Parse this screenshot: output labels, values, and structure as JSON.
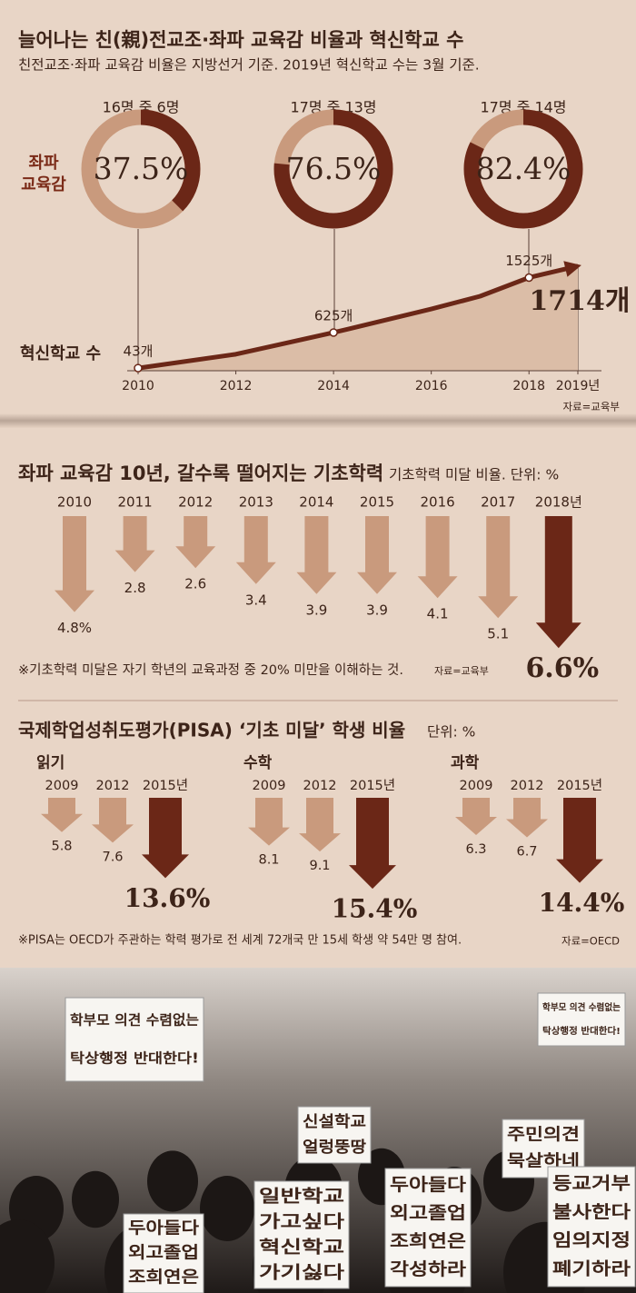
{
  "chart_data": [
    {
      "type": "donut",
      "title": "늘어나는 친(親)전교조·좌파 교육감 비율과 혁신학교 수",
      "subtitle": "친전교조·좌파 교육감 비율은 지방선거 기준. 2019년 혁신학교 수는 3월 기준.",
      "label": "좌파 교육감",
      "categories": [
        "16명 중 6명",
        "17명 중 13명",
        "17명 중 14명"
      ],
      "values": [
        37.5,
        76.5,
        82.4
      ],
      "value_labels": [
        "37.5%",
        "76.5%",
        "82.4%"
      ],
      "color": "#6b2717",
      "track_color": "#c99a7d"
    },
    {
      "type": "area",
      "label": "혁신학교 수",
      "x": [
        2010,
        2012,
        2014,
        2016,
        2017,
        2018,
        2019
      ],
      "values": [
        43,
        270,
        625,
        1010,
        1220,
        1525,
        1714
      ],
      "value_labels": [
        "43개",
        null,
        "625개",
        null,
        null,
        "1525개",
        "1714개"
      ],
      "xlim": [
        2010,
        2019
      ],
      "ylim": [
        0,
        1800
      ],
      "xticks": [
        2010,
        2012,
        2014,
        2016,
        2018,
        {
          "value": 2019,
          "label": "2019년"
        }
      ],
      "color": "#6b2717",
      "fill": "#dbbda7",
      "source": "자료=교육부"
    },
    {
      "type": "arrow_bar",
      "title": "좌파 교육감 10년, 갈수록 떨어지는 기초학력",
      "subtitle": "기초학력 미달 비율. 단위: %",
      "categories": [
        "2010",
        "2011",
        "2012",
        "2013",
        "2014",
        "2015",
        "2016",
        "2017",
        "2018년"
      ],
      "values": [
        4.8,
        2.8,
        2.6,
        3.4,
        3.9,
        3.9,
        4.1,
        5.1,
        6.6
      ],
      "value_labels": [
        "4.8%",
        "2.8",
        "2.6",
        "3.4",
        "3.9",
        "3.9",
        "4.1",
        "5.1",
        "6.6%"
      ],
      "colors": [
        "#c99a7d",
        "#c99a7d",
        "#c99a7d",
        "#c99a7d",
        "#c99a7d",
        "#c99a7d",
        "#c99a7d",
        "#c99a7d",
        "#6b2717"
      ],
      "ylim": [
        0,
        7
      ],
      "note": "※기초학력 미달은 자기 학년의 교육과정 중 20% 미만을 이해하는 것.",
      "source": "자료=교육부"
    },
    {
      "type": "arrow_bar_panels",
      "title": "국제학업성취도평가(PISA) ‘기초 미달’ 학생 비율",
      "subtitle": "단위: %",
      "ylim": [
        0,
        16
      ],
      "colors": [
        "#c99a7d",
        "#c99a7d",
        "#6b2717"
      ],
      "panels": [
        {
          "title": "읽기",
          "categories": [
            "2009",
            "2012",
            "2015년"
          ],
          "values": [
            5.8,
            7.6,
            13.6
          ],
          "value_labels": [
            "5.8",
            "7.6",
            "13.6%"
          ]
        },
        {
          "title": "수학",
          "categories": [
            "2009",
            "2012",
            "2015년"
          ],
          "values": [
            8.1,
            9.1,
            15.4
          ],
          "value_labels": [
            "8.1",
            "9.1",
            "15.4%"
          ]
        },
        {
          "title": "과학",
          "categories": [
            "2009",
            "2012",
            "2015년"
          ],
          "values": [
            6.3,
            6.7,
            14.4
          ],
          "value_labels": [
            "6.3",
            "6.7",
            "14.4%"
          ]
        }
      ],
      "note": "※PISA는 OECD가 주관하는 학력 평가로 전 세계 72개국 만 15세 학생 약 54만 명 참여.",
      "source": "자료=OECD"
    }
  ],
  "photo": {
    "signs": [
      [
        "학부모 의견 수렴없는",
        "탁상행정 반대한다!"
      ],
      [
        "학부모 의견 수렴없는",
        "탁상행정 반대한다!"
      ],
      [
        "신설학교",
        "얼렁뚱땅"
      ],
      [
        "주민의견",
        "묵살하네"
      ],
      [
        "일반학교",
        "가고싶다",
        "혁신학교",
        "가기싫다"
      ],
      [
        "두아들다",
        "외고졸업",
        "조희연은",
        "각성하라"
      ],
      [
        "등교거부",
        "불사한다",
        "임의지정",
        "폐기하라"
      ],
      [
        "두아들다",
        "외고졸업",
        "조희연은"
      ]
    ]
  }
}
